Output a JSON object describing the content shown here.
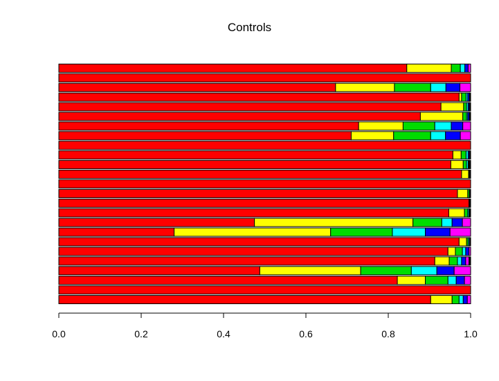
{
  "chart_data": {
    "type": "bar",
    "orientation": "horizontal",
    "stacked": true,
    "title": "Controls",
    "xlabel": "",
    "ylabel": "",
    "xlim": [
      0,
      1
    ],
    "xticks": [
      "0.0",
      "0.2",
      "0.4",
      "0.6",
      "0.8",
      "1.0"
    ],
    "xtick_values": [
      0,
      0.2,
      0.4,
      0.6,
      0.8,
      1.0
    ],
    "grid": false,
    "legend": "none",
    "component_colors": [
      "#ff0000",
      "#ffff00",
      "#00dd00",
      "#00ffff",
      "#0000ff",
      "#ff00ff",
      "#000000"
    ],
    "rows": [
      [
        0.903,
        0.052,
        0.017,
        0.01,
        0.01,
        0.008,
        0.0
      ],
      [
        1.0,
        0.0,
        0.0,
        0.0,
        0.0,
        0.0,
        0.0
      ],
      [
        0.822,
        0.068,
        0.055,
        0.02,
        0.02,
        0.015,
        0.0
      ],
      [
        0.488,
        0.245,
        0.123,
        0.062,
        0.042,
        0.04,
        0.0
      ],
      [
        0.913,
        0.035,
        0.02,
        0.01,
        0.01,
        0.008,
        0.004
      ],
      [
        0.945,
        0.018,
        0.017,
        0.008,
        0.008,
        0.004,
        0.0
      ],
      [
        0.972,
        0.018,
        0.004,
        0.003,
        0.0,
        0.0,
        0.003
      ],
      [
        0.28,
        0.38,
        0.15,
        0.08,
        0.06,
        0.05,
        0.0
      ],
      [
        0.475,
        0.385,
        0.07,
        0.025,
        0.025,
        0.02,
        0.0
      ],
      [
        0.947,
        0.038,
        0.008,
        0.003,
        0.0,
        0.0,
        0.004
      ],
      [
        0.996,
        0.0,
        0.0,
        0.0,
        0.0,
        0.0,
        0.004
      ],
      [
        0.968,
        0.025,
        0.004,
        0.0,
        0.0,
        0.0,
        0.003
      ],
      [
        1.0,
        0.0,
        0.0,
        0.0,
        0.0,
        0.0,
        0.0
      ],
      [
        0.978,
        0.017,
        0.002,
        0.0,
        0.0,
        0.0,
        0.003
      ],
      [
        0.952,
        0.03,
        0.008,
        0.004,
        0.0,
        0.0,
        0.006
      ],
      [
        0.957,
        0.02,
        0.012,
        0.005,
        0.003,
        0.0,
        0.003
      ],
      [
        1.0,
        0.0,
        0.0,
        0.0,
        0.0,
        0.0,
        0.0
      ],
      [
        0.71,
        0.103,
        0.09,
        0.036,
        0.036,
        0.025,
        0.0
      ],
      [
        0.728,
        0.108,
        0.077,
        0.04,
        0.028,
        0.019,
        0.0
      ],
      [
        0.878,
        0.103,
        0.009,
        0.003,
        0.004,
        0.0,
        0.003
      ],
      [
        0.928,
        0.055,
        0.007,
        0.004,
        0.003,
        0.0,
        0.003
      ],
      [
        0.972,
        0.006,
        0.011,
        0.004,
        0.004,
        0.0,
        0.003
      ],
      [
        0.672,
        0.143,
        0.088,
        0.037,
        0.034,
        0.026,
        0.0
      ],
      [
        1.0,
        0.0,
        0.0,
        0.0,
        0.0,
        0.0,
        0.0
      ],
      [
        0.845,
        0.108,
        0.022,
        0.011,
        0.008,
        0.006,
        0.0
      ]
    ]
  }
}
